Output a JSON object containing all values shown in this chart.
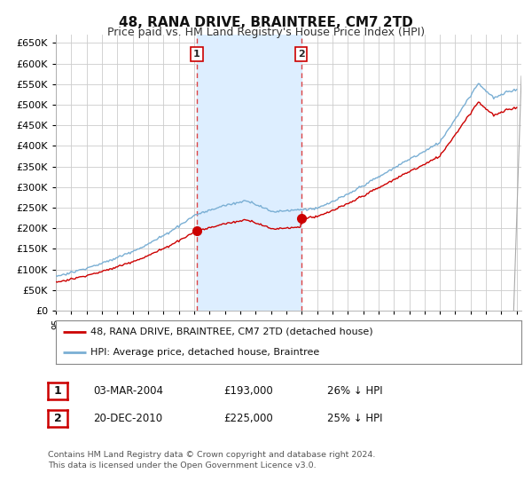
{
  "title": "48, RANA DRIVE, BRAINTREE, CM7 2TD",
  "subtitle": "Price paid vs. HM Land Registry's House Price Index (HPI)",
  "ylim": [
    0,
    670000
  ],
  "yticks": [
    0,
    50000,
    100000,
    150000,
    200000,
    250000,
    300000,
    350000,
    400000,
    450000,
    500000,
    550000,
    600000,
    650000
  ],
  "background_color": "#ffffff",
  "plot_bg_color": "#ffffff",
  "grid_color": "#cccccc",
  "hpi_color": "#7aafd4",
  "price_color": "#cc0000",
  "vline_color": "#dd4444",
  "highlight_color": "#ddeeff",
  "marker1_date": 2004.17,
  "marker1_price": 193000,
  "marker2_date": 2010.97,
  "marker2_price": 225000,
  "legend_label_price": "48, RANA DRIVE, BRAINTREE, CM7 2TD (detached house)",
  "legend_label_hpi": "HPI: Average price, detached house, Braintree",
  "table_rows": [
    {
      "num": "1",
      "date": "03-MAR-2004",
      "price": "£193,000",
      "hpi": "26% ↓ HPI"
    },
    {
      "num": "2",
      "date": "20-DEC-2010",
      "price": "£225,000",
      "hpi": "25% ↓ HPI"
    }
  ],
  "footer": "Contains HM Land Registry data © Crown copyright and database right 2024.\nThis data is licensed under the Open Government Licence v3.0.",
  "title_fontsize": 11,
  "subtitle_fontsize": 9,
  "axis_fontsize": 8
}
